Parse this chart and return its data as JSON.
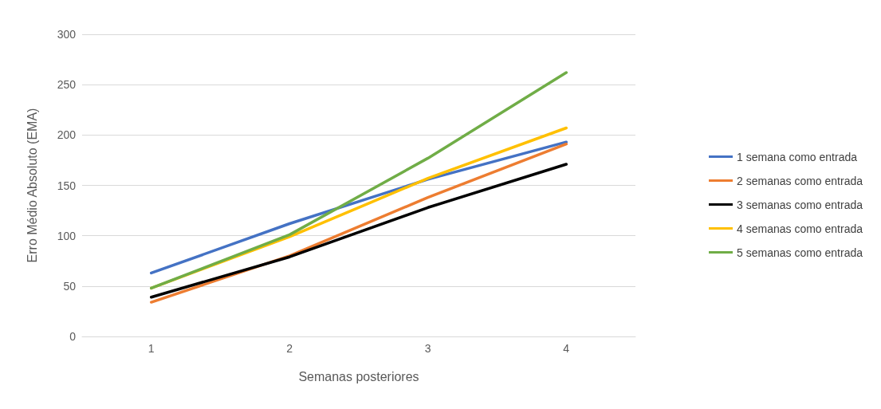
{
  "chart_data": {
    "type": "line",
    "xlabel": "Semanas posteriores",
    "ylabel": "Erro Médio Absoluto (EMA)",
    "categories": [
      "1",
      "2",
      "3",
      "4"
    ],
    "series": [
      {
        "name": "1 semana como entrada",
        "color": "#4472c4",
        "values": [
          63,
          112,
          156,
          193
        ]
      },
      {
        "name": "2 semanas como entrada",
        "color": "#ed7d31",
        "values": [
          34,
          80,
          138,
          191
        ]
      },
      {
        "name": "3 semanas como entrada",
        "color": "#000000",
        "values": [
          39,
          79,
          128,
          171
        ]
      },
      {
        "name": "4 semanas como entrada",
        "color": "#ffc000",
        "values": [
          48,
          99,
          157,
          207
        ]
      },
      {
        "name": "5 semanas como entrada",
        "color": "#70ad47",
        "values": [
          48,
          101,
          177,
          262
        ]
      }
    ],
    "ylim": [
      0,
      300
    ],
    "yticks": [
      0,
      50,
      100,
      150,
      200,
      250,
      300
    ],
    "grid": "y",
    "legend": "right",
    "marker": "none",
    "line_style": "solid"
  }
}
